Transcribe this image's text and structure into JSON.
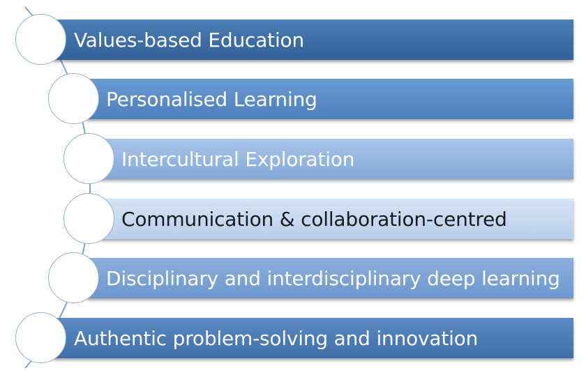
{
  "diagram": {
    "items": [
      {
        "label": "Values-based Education"
      },
      {
        "label": "Personalised Learning"
      },
      {
        "label": "Intercultural Exploration"
      },
      {
        "label": "Communication & collaboration-centred"
      },
      {
        "label": "Disciplinary and interdisciplinary deep learning"
      },
      {
        "label": "Authentic problem-solving and innovation"
      }
    ]
  },
  "colors": {
    "arc": "#7ea3cf",
    "circle_border": "#8fb0d8"
  }
}
